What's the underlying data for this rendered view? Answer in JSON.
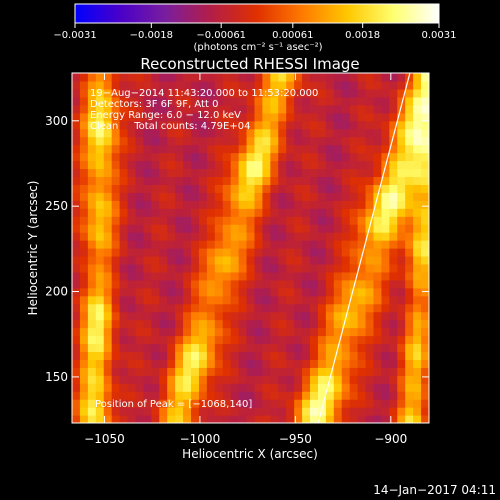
{
  "chart_data": {
    "type": "heatmap",
    "title": "Reconstructed RHESSI Image",
    "xlabel": "Heliocentric X (arcsec)",
    "ylabel": "Heliocentric Y (arcsec)",
    "xlim": [
      -1067,
      -880
    ],
    "ylim": [
      123,
      328
    ],
    "x_ticks": [
      -1050,
      -1000,
      -950,
      -900
    ],
    "x_tick_labels": [
      "−1050",
      "−1000",
      "−950",
      "−900"
    ],
    "y_ticks": [
      150,
      200,
      250,
      300
    ],
    "y_tick_labels": [
      "150",
      "200",
      "250",
      "300"
    ],
    "colorbar": {
      "range": [
        -0.0031,
        0.0031
      ],
      "ticks": [
        -0.0031,
        -0.0018,
        -0.00061,
        0.00061,
        0.0018,
        0.0031
      ],
      "tick_labels": [
        "−0.0031",
        "−0.0018",
        "−0.00061",
        "0.00061",
        "0.0018",
        "0.0031"
      ],
      "unit_label": "(photons cm⁻² s⁻¹ asec⁻²)",
      "colormap": [
        "#0000ff",
        "#4a00c8",
        "#7a1e9e",
        "#b41e46",
        "#e03000",
        "#ff7a00",
        "#ffc800",
        "#ffff70",
        "#ffffff"
      ]
    },
    "annotations": [
      "19−Aug−2014 11:43:20.000 to 11:53:20.000",
      "Detectors: 3F 6F 9F, Att 0",
      "Energy Range: 6.0 − 12.0 keV",
      "Clean     Total counts: 4.79E+04"
    ],
    "peak_label": "Position of Peak = [−1068,140]",
    "limb_line": {
      "x": [
        -938,
        -890
      ],
      "y": [
        123,
        328
      ]
    },
    "intensity_ridges": [
      {
        "x_center": -1055,
        "x_slope_per_arcsec_y": 0.02,
        "width": 9,
        "amplitude": 0.003
      },
      {
        "x_center": -1008,
        "x_slope_per_arcsec_y": 0.27,
        "width": 11,
        "amplitude": 0.0029
      },
      {
        "x_center": -935,
        "x_slope_per_arcsec_y": 0.3,
        "width": 12,
        "amplitude": 0.0031
      },
      {
        "x_center": -888,
        "x_slope_per_arcsec_y": 0.05,
        "width": 8,
        "amplitude": 0.0027
      }
    ],
    "background_level": -0.0006
  },
  "footer": {
    "timestamp": "14−Jan−2017 04:11"
  }
}
